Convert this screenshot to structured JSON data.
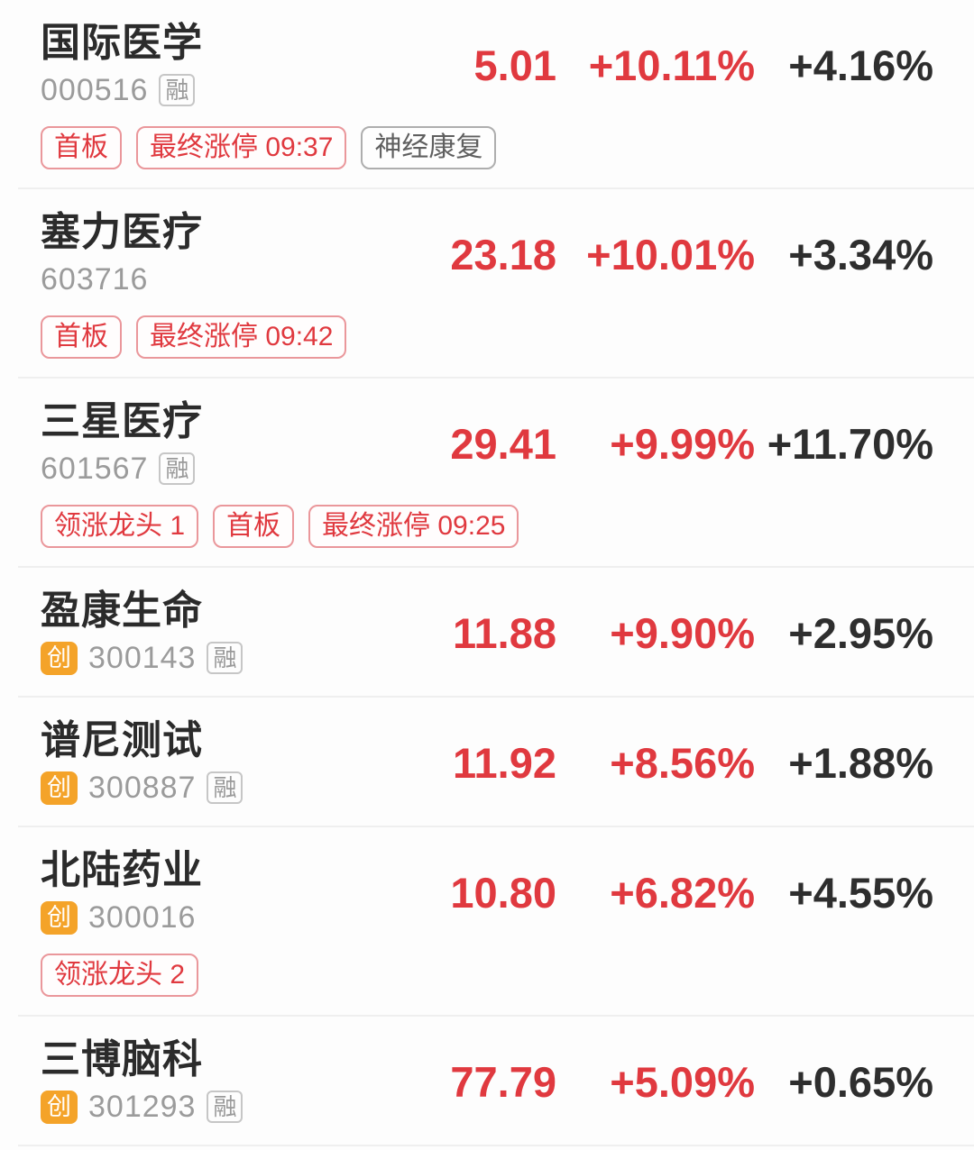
{
  "colors": {
    "red": "#e0393f",
    "orange": "#f4a329",
    "dark_text": "#2e2e2e",
    "code_gray": "#9b9b9b",
    "divider": "#efefef"
  },
  "stock_list": {
    "rows": [
      {
        "name": "国际医学",
        "market_label": "",
        "code": "000516",
        "margin_label": "融",
        "price": "5.01",
        "change_pct": "+10.11%",
        "secondary_pct": "+4.16%",
        "tags": [
          {
            "label": "首板",
            "style": "red"
          },
          {
            "label": "最终涨停 09:37",
            "style": "red"
          },
          {
            "label": "神经康复",
            "style": "gray"
          }
        ]
      },
      {
        "name": "塞力医疗",
        "market_label": "",
        "code": "603716",
        "margin_label": "",
        "price": "23.18",
        "change_pct": "+10.01%",
        "secondary_pct": "+3.34%",
        "tags": [
          {
            "label": "首板",
            "style": "red"
          },
          {
            "label": "最终涨停 09:42",
            "style": "red"
          }
        ]
      },
      {
        "name": "三星医疗",
        "market_label": "",
        "code": "601567",
        "margin_label": "融",
        "price": "29.41",
        "change_pct": "+9.99%",
        "secondary_pct": "+11.70%",
        "tags": [
          {
            "label": "领涨龙头 1",
            "style": "red"
          },
          {
            "label": "首板",
            "style": "red"
          },
          {
            "label": "最终涨停 09:25",
            "style": "red"
          }
        ]
      },
      {
        "name": "盈康生命",
        "market_label": "创",
        "code": "300143",
        "margin_label": "融",
        "price": "11.88",
        "change_pct": "+9.90%",
        "secondary_pct": "+2.95%",
        "tags": []
      },
      {
        "name": "谱尼测试",
        "market_label": "创",
        "code": "300887",
        "margin_label": "融",
        "price": "11.92",
        "change_pct": "+8.56%",
        "secondary_pct": "+1.88%",
        "tags": []
      },
      {
        "name": "北陆药业",
        "market_label": "创",
        "code": "300016",
        "margin_label": "",
        "price": "10.80",
        "change_pct": "+6.82%",
        "secondary_pct": "+4.55%",
        "tags": [
          {
            "label": "领涨龙头 2",
            "style": "red"
          }
        ]
      },
      {
        "name": "三博脑科",
        "market_label": "创",
        "code": "301293",
        "margin_label": "融",
        "price": "77.79",
        "change_pct": "+5.09%",
        "secondary_pct": "+0.65%",
        "tags": []
      }
    ]
  }
}
